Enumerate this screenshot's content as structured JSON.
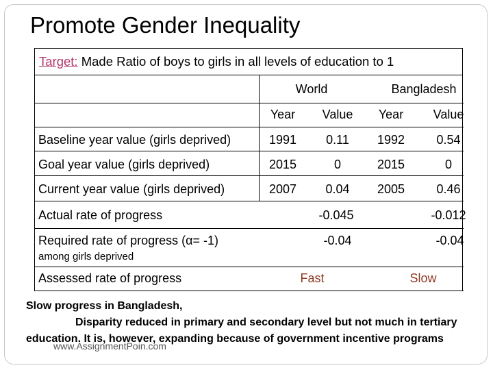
{
  "title": "Promote Gender Inequality",
  "target": {
    "label": "Target:",
    "text": " Made Ratio of boys to girls in all levels of education to 1"
  },
  "table": {
    "groups": [
      "World",
      "Bangladesh"
    ],
    "subheaders": [
      "Year",
      "Value",
      "Year",
      "Value"
    ],
    "rows": [
      {
        "label": "Baseline year value (girls deprived)",
        "cells": [
          "1991",
          "0.11",
          "1992",
          "0.54"
        ]
      },
      {
        "label": "Goal year value (girls deprived)",
        "cells": [
          "2015",
          "0",
          "2015",
          "0"
        ]
      },
      {
        "label": "Current year value (girls deprived)",
        "cells": [
          "2007",
          "0.04",
          "2005",
          "0.46"
        ]
      }
    ],
    "actual": {
      "label": "Actual rate of progress",
      "world": "-0.045",
      "bangladesh": "-0.012"
    },
    "required": {
      "label": "Required rate of progress (α= -1)",
      "sublabel": "among girls deprived",
      "world": "-0.04",
      "bangladesh": "-0.04"
    },
    "assessed": {
      "label": "Assessed rate of progress",
      "world": "Fast",
      "bangladesh": "Slow"
    }
  },
  "notes": {
    "line1": "Slow progress in Bangladesh,",
    "line2": "Disparity reduced in primary and secondary level but not much in tertiary",
    "line3": "education. It is, however, expanding because of government incentive programs"
  },
  "watermark": "www.AssignmentPoin.com",
  "colors": {
    "target_label": "#b2376b",
    "assessed_values": "#8b3a24"
  }
}
